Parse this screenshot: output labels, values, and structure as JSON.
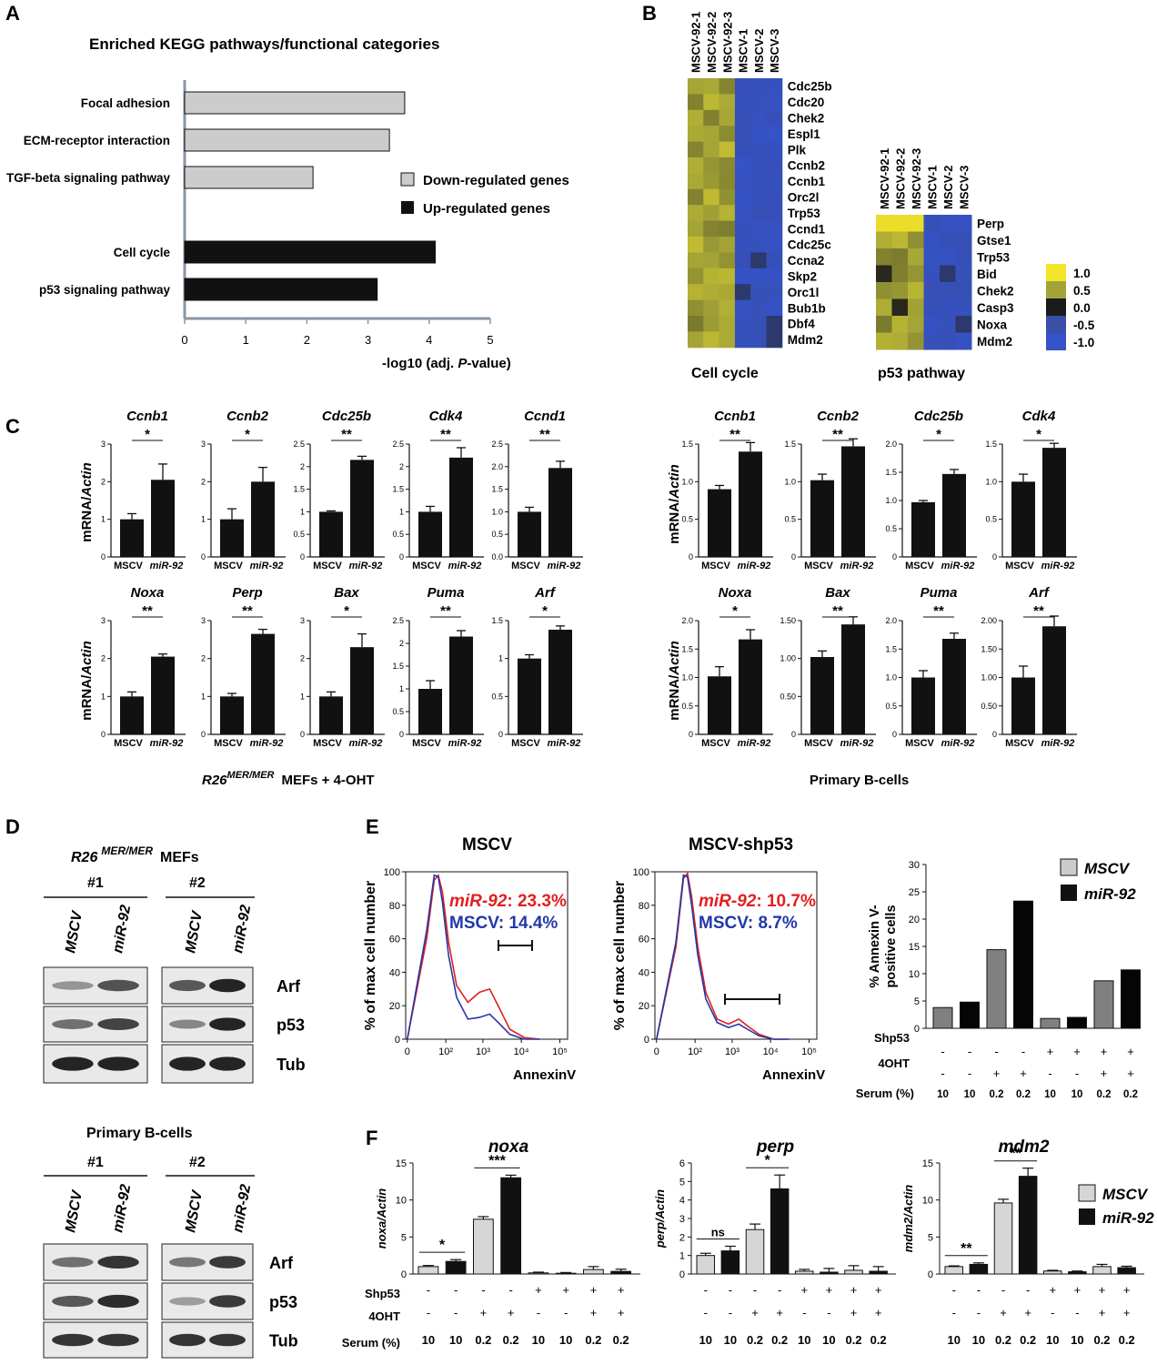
{
  "panels": {
    "A": "A",
    "B": "B",
    "C": "C",
    "D": "D",
    "E": "E",
    "F": "F"
  },
  "panelA": {
    "title": "Enriched KEGG pathways/functional categories",
    "xlabel_pre": "-log10 (adj. ",
    "xlabel_p": "P",
    "xlabel_post": "-value)",
    "legend": [
      {
        "label": "Down-regulated genes",
        "color": "#cccccc"
      },
      {
        "label": "Up-regulated genes",
        "color": "#111111"
      }
    ]
  },
  "panelB": {
    "cc_title": "Cell cycle",
    "p53_title": "p53 pathway",
    "columns": [
      "MSCV-92-1",
      "MSCV-92-2",
      "MSCV-92-3",
      "MSCV-1",
      "MSCV-2",
      "MSCV-3"
    ],
    "cc_genes": [
      "Cdc25b",
      "Cdc20",
      "Chek2",
      "Espl1",
      "Plk",
      "Ccnb2",
      "Ccnb1",
      "Orc2l",
      "Trp53",
      "Ccnd1",
      "Cdc25c",
      "Ccna2",
      "Skp2",
      "Orc1l",
      "Bub1b",
      "Dbf4",
      "Mdm2"
    ],
    "p53_genes": [
      "Perp",
      "Gtse1",
      "Trp53",
      "Bid",
      "Chek2",
      "Casp3",
      "Noxa",
      "Mdm2"
    ],
    "scale_labels": [
      "1.0",
      "0.5",
      "0.0",
      "-0.5",
      "-1.0"
    ],
    "scale_colors": [
      "#f2e52a",
      "#a3a337",
      "#1a1a1a",
      "#3a4ea5",
      "#3552c6"
    ]
  },
  "panelC": {
    "ylabel_pre": "mRNA/",
    "ylabel_it": "Actin",
    "mef_caption_it": "R26",
    "mef_caption_sup": "MER/MER",
    "mef_caption_rest": "MEFs  +  4-OHT",
    "bcell_caption": "Primary B-cells",
    "cat_mscv": "MSCV",
    "cat_mir": "miR-92"
  },
  "panelD": {
    "title_it": "R26",
    "title_sup": "MER/MER",
    "title_rest": "MEFs",
    "rep1": "#1",
    "rep2": "#2",
    "lane1": "MSCV",
    "lane2": "miR-92",
    "bcell_title": "Primary B-cells",
    "bands": [
      "Arf",
      "p53",
      "Tub"
    ]
  },
  "panelE": {
    "hist1_title": "MSCV",
    "hist2_title": "MSCV-shp53",
    "hist_ylabel": "% of max cell number",
    "hist_xlabel": "AnnexinV",
    "h1_mir_label": "miR-92",
    "h1_mir_val": ": 23.3%",
    "h1_mscv": "MSCV: 14.4%",
    "h2_mir_label": "miR-92",
    "h2_mir_val": ": 10.7%",
    "h2_mscv": "MSCV: 8.7%",
    "bar_ylabel1": "% Annexin V-",
    "bar_ylabel2": "positive cells",
    "legend_mscv": "MSCV",
    "legend_mir": "miR-92"
  },
  "panelF": {
    "row_shp53": "Shp53",
    "row_4oht": "4OHT",
    "row_serum": "Serum (%)",
    "legend_mscv": "MSCV",
    "legend_mir": "miR-92"
  },
  "chart_data": [
    {
      "id": "A",
      "type": "bar",
      "title": "Enriched KEGG pathways/functional categories",
      "orientation": "horizontal",
      "categories": [
        "Focal adhesion",
        "ECM-receptor interaction",
        "TGF-beta signaling pathway",
        "Cell cycle",
        "p53 signaling pathway"
      ],
      "values": [
        3.6,
        3.35,
        2.1,
        4.1,
        3.15
      ],
      "groups": [
        "down",
        "down",
        "down",
        "up",
        "up"
      ],
      "xlabel": "-log10 (adj. P-value)",
      "xlim": [
        0,
        5
      ],
      "xticks": [
        0,
        1,
        2,
        3,
        4,
        5
      ]
    },
    {
      "id": "C-MEF-Ccnb1",
      "type": "bar",
      "title": "Ccnb1",
      "categories": [
        "MSCV",
        "miR-92"
      ],
      "values": [
        1.0,
        2.05
      ],
      "errors": [
        0.15,
        0.42
      ],
      "ylim": [
        0,
        3
      ],
      "yticks": [
        "0",
        "1",
        "2",
        "3"
      ],
      "sig": "*"
    },
    {
      "id": "C-MEF-Ccnb2",
      "type": "bar",
      "title": "Ccnb2",
      "categories": [
        "MSCV",
        "miR-92"
      ],
      "values": [
        1.0,
        2.0
      ],
      "errors": [
        0.28,
        0.38
      ],
      "ylim": [
        0,
        3
      ],
      "yticks": [
        "0",
        "1",
        "2",
        "3"
      ],
      "sig": "*"
    },
    {
      "id": "C-MEF-Cdc25b",
      "type": "bar",
      "title": "Cdc25b",
      "categories": [
        "MSCV",
        "miR-92"
      ],
      "values": [
        1.0,
        2.15
      ],
      "errors": [
        0.02,
        0.08
      ],
      "ylim": [
        0,
        2.5
      ],
      "yticks": [
        "0",
        "0.5",
        "1",
        "1.5",
        "2",
        "2.5"
      ],
      "sig": "**"
    },
    {
      "id": "C-MEF-Cdk4",
      "type": "bar",
      "title": "Cdk4",
      "categories": [
        "MSCV",
        "miR-92"
      ],
      "values": [
        1.0,
        2.2
      ],
      "errors": [
        0.12,
        0.22
      ],
      "ylim": [
        0,
        2.5
      ],
      "yticks": [
        "0",
        "0.5",
        "1",
        "1.5",
        "2",
        "2.5"
      ],
      "sig": "**"
    },
    {
      "id": "C-MEF-Ccnd1",
      "type": "bar",
      "title": "Ccnd1",
      "categories": [
        "MSCV",
        "miR-92"
      ],
      "values": [
        1.0,
        1.97
      ],
      "errors": [
        0.1,
        0.15
      ],
      "ylim": [
        0,
        2.5
      ],
      "yticks": [
        "0.0",
        "0.5",
        "1.0",
        "1.5",
        "2.0",
        "2.5"
      ],
      "sig": "**"
    },
    {
      "id": "C-MEF-Noxa",
      "type": "bar",
      "title": "Noxa",
      "categories": [
        "MSCV",
        "miR-92"
      ],
      "values": [
        1.0,
        2.05
      ],
      "errors": [
        0.12,
        0.07
      ],
      "ylim": [
        0,
        3
      ],
      "yticks": [
        "0",
        "1",
        "2",
        "3"
      ],
      "sig": "**"
    },
    {
      "id": "C-MEF-Perp",
      "type": "bar",
      "title": "Perp",
      "categories": [
        "MSCV",
        "miR-92"
      ],
      "values": [
        1.0,
        2.65
      ],
      "errors": [
        0.08,
        0.12
      ],
      "ylim": [
        0,
        3
      ],
      "yticks": [
        "0",
        "1",
        "2",
        "3"
      ],
      "sig": "**"
    },
    {
      "id": "C-MEF-Bax",
      "type": "bar",
      "title": "Bax",
      "categories": [
        "MSCV",
        "miR-92"
      ],
      "values": [
        1.0,
        2.3
      ],
      "errors": [
        0.12,
        0.35
      ],
      "ylim": [
        0,
        3
      ],
      "yticks": [
        "0",
        "1",
        "2",
        "3"
      ],
      "sig": "*"
    },
    {
      "id": "C-MEF-Puma",
      "type": "bar",
      "title": "Puma",
      "categories": [
        "MSCV",
        "miR-92"
      ],
      "values": [
        1.0,
        2.15
      ],
      "errors": [
        0.18,
        0.13
      ],
      "ylim": [
        0,
        2.5
      ],
      "yticks": [
        "0",
        "0.5",
        "1",
        "1.5",
        "2",
        "2.5"
      ],
      "sig": "**"
    },
    {
      "id": "C-MEF-Arf",
      "type": "bar",
      "title": "Arf",
      "categories": [
        "MSCV",
        "miR-92"
      ],
      "values": [
        1.0,
        1.38
      ],
      "errors": [
        0.05,
        0.05
      ],
      "ylim": [
        0,
        1.5
      ],
      "yticks": [
        "0",
        "0.5",
        "1",
        "1.5"
      ],
      "sig": "*"
    },
    {
      "id": "C-B-Ccnb1",
      "type": "bar",
      "title": "Ccnb1",
      "categories": [
        "MSCV",
        "miR-92"
      ],
      "values": [
        0.9,
        1.4
      ],
      "errors": [
        0.05,
        0.12
      ],
      "ylim": [
        0,
        1.5
      ],
      "yticks": [
        "0",
        "0.5",
        "1.0",
        "1.5"
      ],
      "sig": "**"
    },
    {
      "id": "C-B-Ccnb2",
      "type": "bar",
      "title": "Ccnb2",
      "categories": [
        "MSCV",
        "miR-92"
      ],
      "values": [
        1.02,
        1.47
      ],
      "errors": [
        0.08,
        0.1
      ],
      "ylim": [
        0,
        1.5
      ],
      "yticks": [
        "0",
        "0.5",
        "1.0",
        "1.5"
      ],
      "sig": "**"
    },
    {
      "id": "C-B-Cdc25b",
      "type": "bar",
      "title": "Cdc25b",
      "categories": [
        "MSCV",
        "miR-92"
      ],
      "values": [
        0.97,
        1.47
      ],
      "errors": [
        0.03,
        0.08
      ],
      "ylim": [
        0,
        2.0
      ],
      "yticks": [
        "0",
        "0.5",
        "1.0",
        "1.5",
        "2.0"
      ],
      "sig": "*"
    },
    {
      "id": "C-B-Cdk4",
      "type": "bar",
      "title": "Cdk4",
      "categories": [
        "MSCV",
        "miR-92"
      ],
      "values": [
        1.0,
        1.45
      ],
      "errors": [
        0.1,
        0.06
      ],
      "ylim": [
        0,
        1.5
      ],
      "yticks": [
        "0",
        "0.5",
        "1.0",
        "1.5"
      ],
      "sig": "*"
    },
    {
      "id": "C-B-Noxa",
      "type": "bar",
      "title": "Noxa",
      "categories": [
        "MSCV",
        "miR-92"
      ],
      "values": [
        1.02,
        1.67
      ],
      "errors": [
        0.17,
        0.17
      ],
      "ylim": [
        0,
        2.0
      ],
      "yticks": [
        "0",
        "0.5",
        "1.0",
        "1.5",
        "2.0"
      ],
      "sig": "*"
    },
    {
      "id": "C-B-Bax",
      "type": "bar",
      "title": "Bax",
      "categories": [
        "MSCV",
        "miR-92"
      ],
      "values": [
        1.02,
        1.45
      ],
      "errors": [
        0.08,
        0.1
      ],
      "ylim": [
        0,
        1.5
      ],
      "yticks": [
        "0",
        "0.50",
        "1.00",
        "1.50"
      ],
      "sig": "**"
    },
    {
      "id": "C-B-Puma",
      "type": "bar",
      "title": "Puma",
      "categories": [
        "MSCV",
        "miR-92"
      ],
      "values": [
        1.0,
        1.68
      ],
      "errors": [
        0.12,
        0.1
      ],
      "ylim": [
        0,
        2.0
      ],
      "yticks": [
        "0",
        "0.5",
        "1.0",
        "1.5",
        "2.0"
      ],
      "sig": "**"
    },
    {
      "id": "C-B-Arf",
      "type": "bar",
      "title": "Arf",
      "categories": [
        "MSCV",
        "miR-92"
      ],
      "values": [
        1.0,
        1.9
      ],
      "errors": [
        0.2,
        0.18
      ],
      "ylim": [
        0,
        2.0
      ],
      "yticks": [
        "0",
        "0.50",
        "1.00",
        "1.50",
        "2.00"
      ],
      "sig": "**"
    },
    {
      "id": "E-hist-MSCV",
      "type": "line",
      "title": "MSCV",
      "xlabel": "AnnexinV",
      "ylabel": "% of max cell number",
      "xscale": "log",
      "ylim": [
        0,
        100
      ],
      "series": [
        {
          "name": "miR-92",
          "color": "#e02020",
          "x": [
            0,
            25,
            45,
            60,
            80,
            120,
            200,
            400,
            800,
            1500,
            2500,
            5000,
            12000,
            30000
          ],
          "values": [
            0,
            60,
            95,
            98,
            88,
            58,
            32,
            22,
            28,
            30,
            20,
            6,
            1,
            0
          ]
        },
        {
          "name": "MSCV",
          "color": "#2238a8",
          "x": [
            0,
            25,
            45,
            60,
            80,
            120,
            200,
            400,
            800,
            1500,
            2500,
            5000,
            12000,
            30000
          ],
          "values": [
            0,
            65,
            98,
            97,
            82,
            50,
            25,
            12,
            13,
            15,
            10,
            3,
            0,
            0
          ]
        }
      ]
    },
    {
      "id": "E-hist-MSCV-shp53",
      "type": "line",
      "title": "MSCV-shp53",
      "xlabel": "AnnexinV",
      "ylabel": "% of max cell number",
      "xscale": "log",
      "ylim": [
        0,
        100
      ],
      "series": [
        {
          "name": "miR-92",
          "color": "#e02020",
          "x": [
            0,
            25,
            45,
            60,
            80,
            120,
            200,
            400,
            800,
            1500,
            2500,
            5000,
            12000,
            30000
          ],
          "values": [
            0,
            55,
            96,
            99,
            85,
            55,
            28,
            12,
            9,
            12,
            8,
            3,
            0,
            0
          ]
        },
        {
          "name": "MSCV",
          "color": "#2238a8",
          "x": [
            0,
            25,
            45,
            60,
            80,
            120,
            200,
            400,
            800,
            1500,
            2500,
            5000,
            12000,
            30000
          ],
          "values": [
            0,
            58,
            98,
            97,
            80,
            50,
            24,
            10,
            7,
            9,
            6,
            2,
            0,
            0
          ]
        }
      ]
    },
    {
      "id": "E-bar",
      "type": "bar",
      "ylabel": "% Annexin V- positive cells",
      "ylim": [
        0,
        30
      ],
      "yticks": [
        "0",
        "5",
        "10",
        "15",
        "20",
        "25",
        "30"
      ],
      "shp53": [
        "-",
        "-",
        "-",
        "-",
        "+",
        "+",
        "+",
        "+"
      ],
      "oht4": [
        "-",
        "-",
        "+",
        "+",
        "-",
        "-",
        "+",
        "+"
      ],
      "serum": [
        "10",
        "10",
        "0.2",
        "0.2",
        "10",
        "10",
        "0.2",
        "0.2"
      ],
      "series_of_bar": [
        "MSCV",
        "miR-92",
        "MSCV",
        "miR-92",
        "MSCV",
        "miR-92",
        "MSCV",
        "miR-92"
      ],
      "values": [
        3.8,
        4.8,
        14.4,
        23.3,
        1.8,
        2.0,
        8.7,
        10.7
      ]
    },
    {
      "id": "F-noxa",
      "type": "bar",
      "title": "noxa",
      "ylabel": "noxa/Actin",
      "ylim": [
        0,
        15
      ],
      "yticks": [
        "0",
        "5",
        "10",
        "15"
      ],
      "shp53": [
        "-",
        "-",
        "-",
        "-",
        "+",
        "+",
        "+",
        "+"
      ],
      "oht4": [
        "-",
        "-",
        "+",
        "+",
        "-",
        "-",
        "+",
        "+"
      ],
      "serum": [
        "10",
        "10",
        "0.2",
        "0.2",
        "10",
        "10",
        "0.2",
        "0.2"
      ],
      "values": [
        1.0,
        1.7,
        7.4,
        13.0,
        0.15,
        0.1,
        0.6,
        0.35
      ],
      "errors": [
        0.15,
        0.25,
        0.35,
        0.35,
        0.1,
        0.1,
        0.4,
        0.3
      ],
      "sigs": [
        {
          "pair": [
            0,
            1
          ],
          "label": "*"
        },
        {
          "pair": [
            2,
            3
          ],
          "label": "***"
        }
      ]
    },
    {
      "id": "F-perp",
      "type": "bar",
      "title": "perp",
      "ylabel": "perp/Actin",
      "ylim": [
        0,
        6
      ],
      "yticks": [
        "0",
        "1",
        "2",
        "3",
        "4",
        "5",
        "6"
      ],
      "shp53": [
        "-",
        "-",
        "-",
        "-",
        "+",
        "+",
        "+",
        "+"
      ],
      "oht4": [
        "-",
        "-",
        "+",
        "+",
        "-",
        "-",
        "+",
        "+"
      ],
      "serum": [
        "10",
        "10",
        "0.2",
        "0.2",
        "10",
        "10",
        "0.2",
        "0.2"
      ],
      "values": [
        1.0,
        1.25,
        2.4,
        4.6,
        0.15,
        0.1,
        0.2,
        0.15
      ],
      "errors": [
        0.12,
        0.25,
        0.3,
        0.75,
        0.1,
        0.2,
        0.25,
        0.25
      ],
      "sigs": [
        {
          "pair": [
            0,
            1
          ],
          "label": "ns"
        },
        {
          "pair": [
            2,
            3
          ],
          "label": "*"
        }
      ]
    },
    {
      "id": "F-mdm2",
      "type": "bar",
      "title": "mdm2",
      "ylabel": "mdm2/Actin",
      "ylim": [
        0,
        15
      ],
      "yticks": [
        "0",
        "5",
        "10",
        "15"
      ],
      "shp53": [
        "-",
        "-",
        "-",
        "-",
        "+",
        "+",
        "+",
        "+"
      ],
      "oht4": [
        "-",
        "-",
        "+",
        "+",
        "-",
        "-",
        "+",
        "+"
      ],
      "serum": [
        "10",
        "10",
        "0.2",
        "0.2",
        "10",
        "10",
        "0.2",
        "0.2"
      ],
      "values": [
        1.0,
        1.3,
        9.6,
        13.2,
        0.4,
        0.3,
        1.0,
        0.85
      ],
      "errors": [
        0.1,
        0.2,
        0.5,
        1.1,
        0.1,
        0.1,
        0.3,
        0.2
      ],
      "sigs": [
        {
          "pair": [
            0,
            1
          ],
          "label": "**"
        },
        {
          "pair": [
            2,
            3
          ],
          "label": "**"
        }
      ]
    }
  ]
}
